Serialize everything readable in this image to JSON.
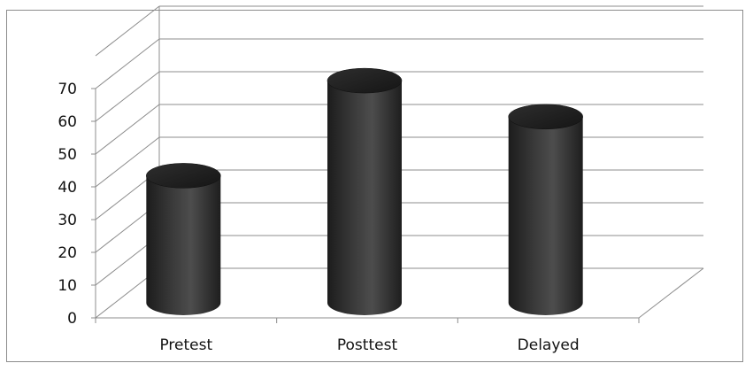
{
  "chart_data": {
    "type": "bar",
    "style": "3d-cylinder",
    "categories": [
      "Pretest",
      "Posttest",
      "Delayed"
    ],
    "values": [
      38,
      67,
      56
    ],
    "ylim": [
      0,
      70
    ],
    "yticks": [
      "0",
      "10",
      "20",
      "30",
      "40",
      "50",
      "60",
      "70"
    ],
    "title": "",
    "xlabel": "",
    "ylabel": "",
    "grid": true,
    "legend": "none",
    "colors": {
      "bar_dark": "#1a1a1a",
      "bar_mid": "#4a4a4a",
      "bar_top": "#2a2a2a",
      "grid": "#8c8c8c",
      "border": "#8c8c8c"
    }
  }
}
